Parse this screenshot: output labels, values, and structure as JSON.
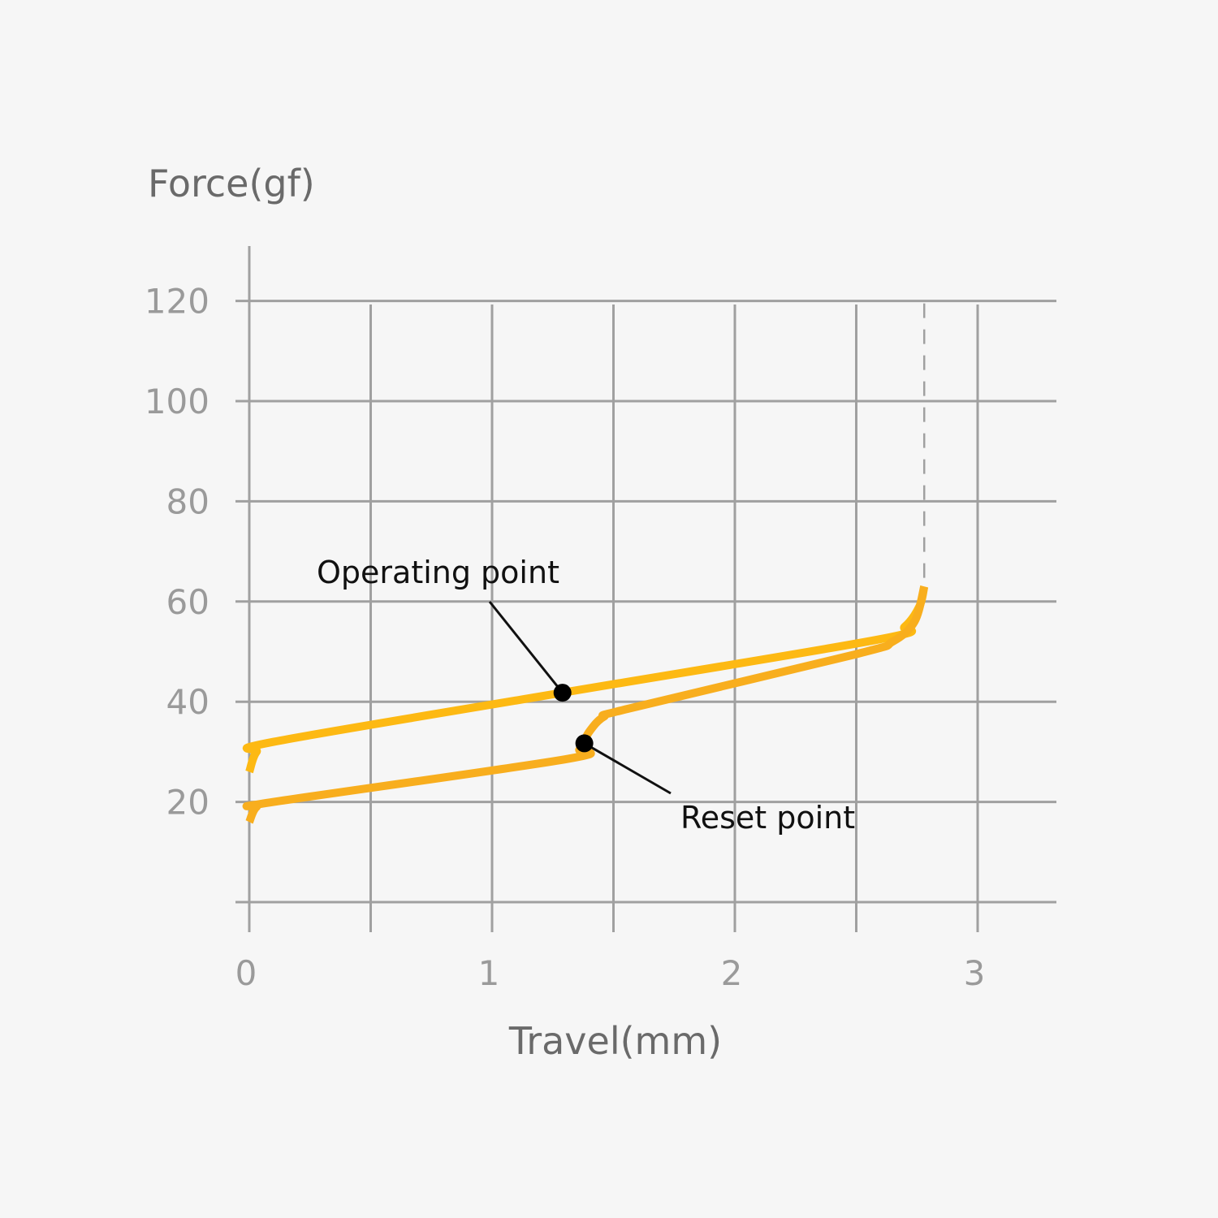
{
  "chart_data": {
    "type": "line",
    "title": "",
    "xlabel": "Travel(mm)",
    "ylabel": "Force(gf)",
    "xlim": [
      0,
      3.3
    ],
    "ylim": [
      0,
      120
    ],
    "x_ticks": [
      "0",
      "1",
      "2",
      "3"
    ],
    "y_ticks": [
      "20",
      "40",
      "60",
      "80",
      "100",
      "120"
    ],
    "grid": true,
    "colors": {
      "grid": "#a0a0a0",
      "press": "#fdb913",
      "release": "#f8ae1e",
      "background": "#f6f6f6"
    },
    "series": [
      {
        "points": [
          [
            0,
            26
          ],
          [
            0.03,
            30
          ],
          [
            0.1,
            32
          ],
          [
            1.29,
            41.8
          ],
          [
            2.6,
            52.5
          ],
          [
            2.7,
            55
          ],
          [
            2.76,
            59
          ],
          [
            2.78,
            63
          ]
        ]
      },
      {
        "points": [
          [
            0,
            16
          ],
          [
            0.03,
            19
          ],
          [
            0.1,
            20
          ],
          [
            1.3,
            28.5
          ],
          [
            1.36,
            30.5
          ],
          [
            1.4,
            34
          ],
          [
            1.46,
            37
          ],
          [
            1.56,
            38.6
          ],
          [
            2.5,
            49.5
          ],
          [
            2.65,
            52
          ],
          [
            2.74,
            56
          ],
          [
            2.78,
            63
          ]
        ]
      }
    ],
    "bottom_out_x": 2.78,
    "annotations": [
      {
        "label": "Operating point",
        "x": 1.29,
        "y": 41.8
      },
      {
        "label": "Reset point",
        "x": 1.38,
        "y": 31.7
      }
    ]
  }
}
